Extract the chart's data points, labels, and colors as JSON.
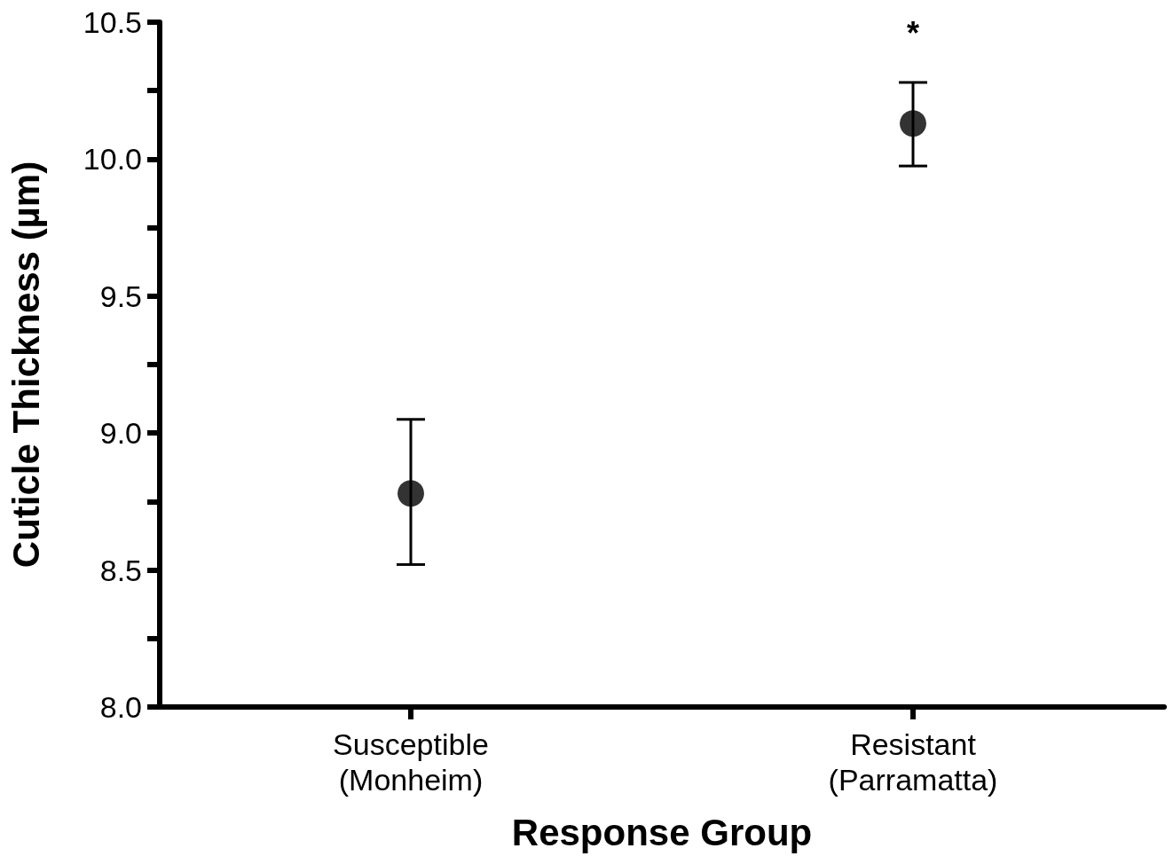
{
  "chart_data": {
    "type": "scatter",
    "xlabel": "Response Group",
    "ylabel": "Cuticle Thickness (µm)",
    "categories": [
      "Susceptible\n(Monheim)",
      "Resistant\n(Parramatta)"
    ],
    "values": [
      8.78,
      10.13
    ],
    "errors": [
      [
        8.52,
        9.05
      ],
      [
        9.975,
        10.28
      ]
    ],
    "color": "#000000",
    "marker": "circle",
    "grid": false,
    "ylim": [
      8,
      10.5
    ],
    "yticks": [
      {
        "value": 8,
        "label": "8.0"
      },
      {
        "value": 8.25,
        "label": null
      },
      {
        "value": 8.5,
        "label": "8.5"
      },
      {
        "value": 8.75,
        "label": null
      },
      {
        "value": 9,
        "label": "9.0"
      },
      {
        "value": 9.25,
        "label": null
      },
      {
        "value": 9.5,
        "label": "9.5"
      },
      {
        "value": 9.75,
        "label": null
      },
      {
        "value": 10,
        "label": "10.0"
      },
      {
        "value": 10.25,
        "label": null
      },
      {
        "value": 10.5,
        "label": "10.5"
      }
    ],
    "annotations": [
      "*"
    ]
  }
}
